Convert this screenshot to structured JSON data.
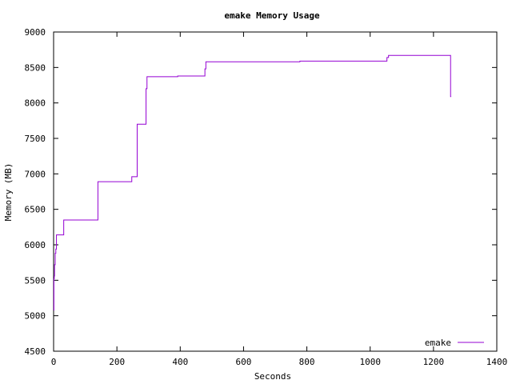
{
  "chart_data": {
    "type": "line",
    "title": "emake Memory Usage",
    "xlabel": "Seconds",
    "ylabel": "Memory (MB)",
    "xlim": [
      0,
      1400
    ],
    "ylim": [
      4500,
      9000
    ],
    "xticks": [
      0,
      200,
      400,
      600,
      800,
      1000,
      1200,
      1400
    ],
    "yticks": [
      4500,
      5000,
      5500,
      6000,
      6500,
      7000,
      7500,
      8000,
      8500,
      9000
    ],
    "grid": false,
    "legend_position": "bottom-right",
    "colors": {
      "series": "#9400d3",
      "axes": "#000000",
      "background": "#ffffff"
    },
    "series": [
      {
        "name": "emake",
        "style": "step",
        "points": [
          [
            0,
            5080
          ],
          [
            1,
            5080
          ],
          [
            1,
            5520
          ],
          [
            2,
            5520
          ],
          [
            2,
            5560
          ],
          [
            3,
            5560
          ],
          [
            3,
            5720
          ],
          [
            5,
            5720
          ],
          [
            5,
            5880
          ],
          [
            7,
            5880
          ],
          [
            7,
            5940
          ],
          [
            9,
            5940
          ],
          [
            9,
            6140
          ],
          [
            32,
            6140
          ],
          [
            32,
            6350
          ],
          [
            140,
            6350
          ],
          [
            140,
            6890
          ],
          [
            247,
            6890
          ],
          [
            247,
            6960
          ],
          [
            264,
            6960
          ],
          [
            264,
            7700
          ],
          [
            292,
            7700
          ],
          [
            292,
            8200
          ],
          [
            295,
            8200
          ],
          [
            295,
            8370
          ],
          [
            392,
            8370
          ],
          [
            392,
            8380
          ],
          [
            478,
            8380
          ],
          [
            478,
            8480
          ],
          [
            481,
            8480
          ],
          [
            481,
            8580
          ],
          [
            778,
            8580
          ],
          [
            778,
            8590
          ],
          [
            1053,
            8590
          ],
          [
            1053,
            8640
          ],
          [
            1058,
            8640
          ],
          [
            1058,
            8670
          ],
          [
            1254,
            8670
          ],
          [
            1254,
            8090
          ],
          [
            1256,
            8090
          ]
        ]
      }
    ]
  }
}
